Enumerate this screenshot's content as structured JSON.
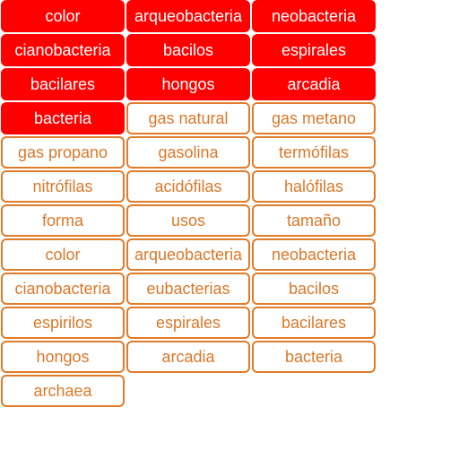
{
  "colors": {
    "selected_fill": "#ff0000",
    "selected_text": "#ffffff",
    "tile_border": "#e07b2a",
    "tile_text": "#d9782a"
  },
  "tiles": [
    {
      "label": "color",
      "selected": true
    },
    {
      "label": "arqueobacteria",
      "selected": true
    },
    {
      "label": "neobacteria",
      "selected": true
    },
    {
      "label": "cianobacteria",
      "selected": true
    },
    {
      "label": "bacilos",
      "selected": true
    },
    {
      "label": "espirales",
      "selected": true
    },
    {
      "label": "bacilares",
      "selected": true
    },
    {
      "label": "hongos",
      "selected": true
    },
    {
      "label": "arcadia",
      "selected": true
    },
    {
      "label": "bacteria",
      "selected": true
    },
    {
      "label": "gas natural",
      "selected": false
    },
    {
      "label": "gas metano",
      "selected": false
    },
    {
      "label": "gas propano",
      "selected": false
    },
    {
      "label": "gasolina",
      "selected": false
    },
    {
      "label": "termófilas",
      "selected": false
    },
    {
      "label": "nitrófilas",
      "selected": false
    },
    {
      "label": "acidófilas",
      "selected": false
    },
    {
      "label": "halófilas",
      "selected": false
    },
    {
      "label": "forma",
      "selected": false
    },
    {
      "label": "usos",
      "selected": false
    },
    {
      "label": "tamaño",
      "selected": false
    },
    {
      "label": "color",
      "selected": false
    },
    {
      "label": "arqueobacteria",
      "selected": false
    },
    {
      "label": "neobacteria",
      "selected": false
    },
    {
      "label": "cianobacteria",
      "selected": false
    },
    {
      "label": "eubacterias",
      "selected": false
    },
    {
      "label": "bacilos",
      "selected": false
    },
    {
      "label": "espirilos",
      "selected": false
    },
    {
      "label": "espirales",
      "selected": false
    },
    {
      "label": "bacilares",
      "selected": false
    },
    {
      "label": "hongos",
      "selected": false
    },
    {
      "label": "arcadia",
      "selected": false
    },
    {
      "label": "bacteria",
      "selected": false
    },
    {
      "label": "archaea",
      "selected": false
    }
  ]
}
